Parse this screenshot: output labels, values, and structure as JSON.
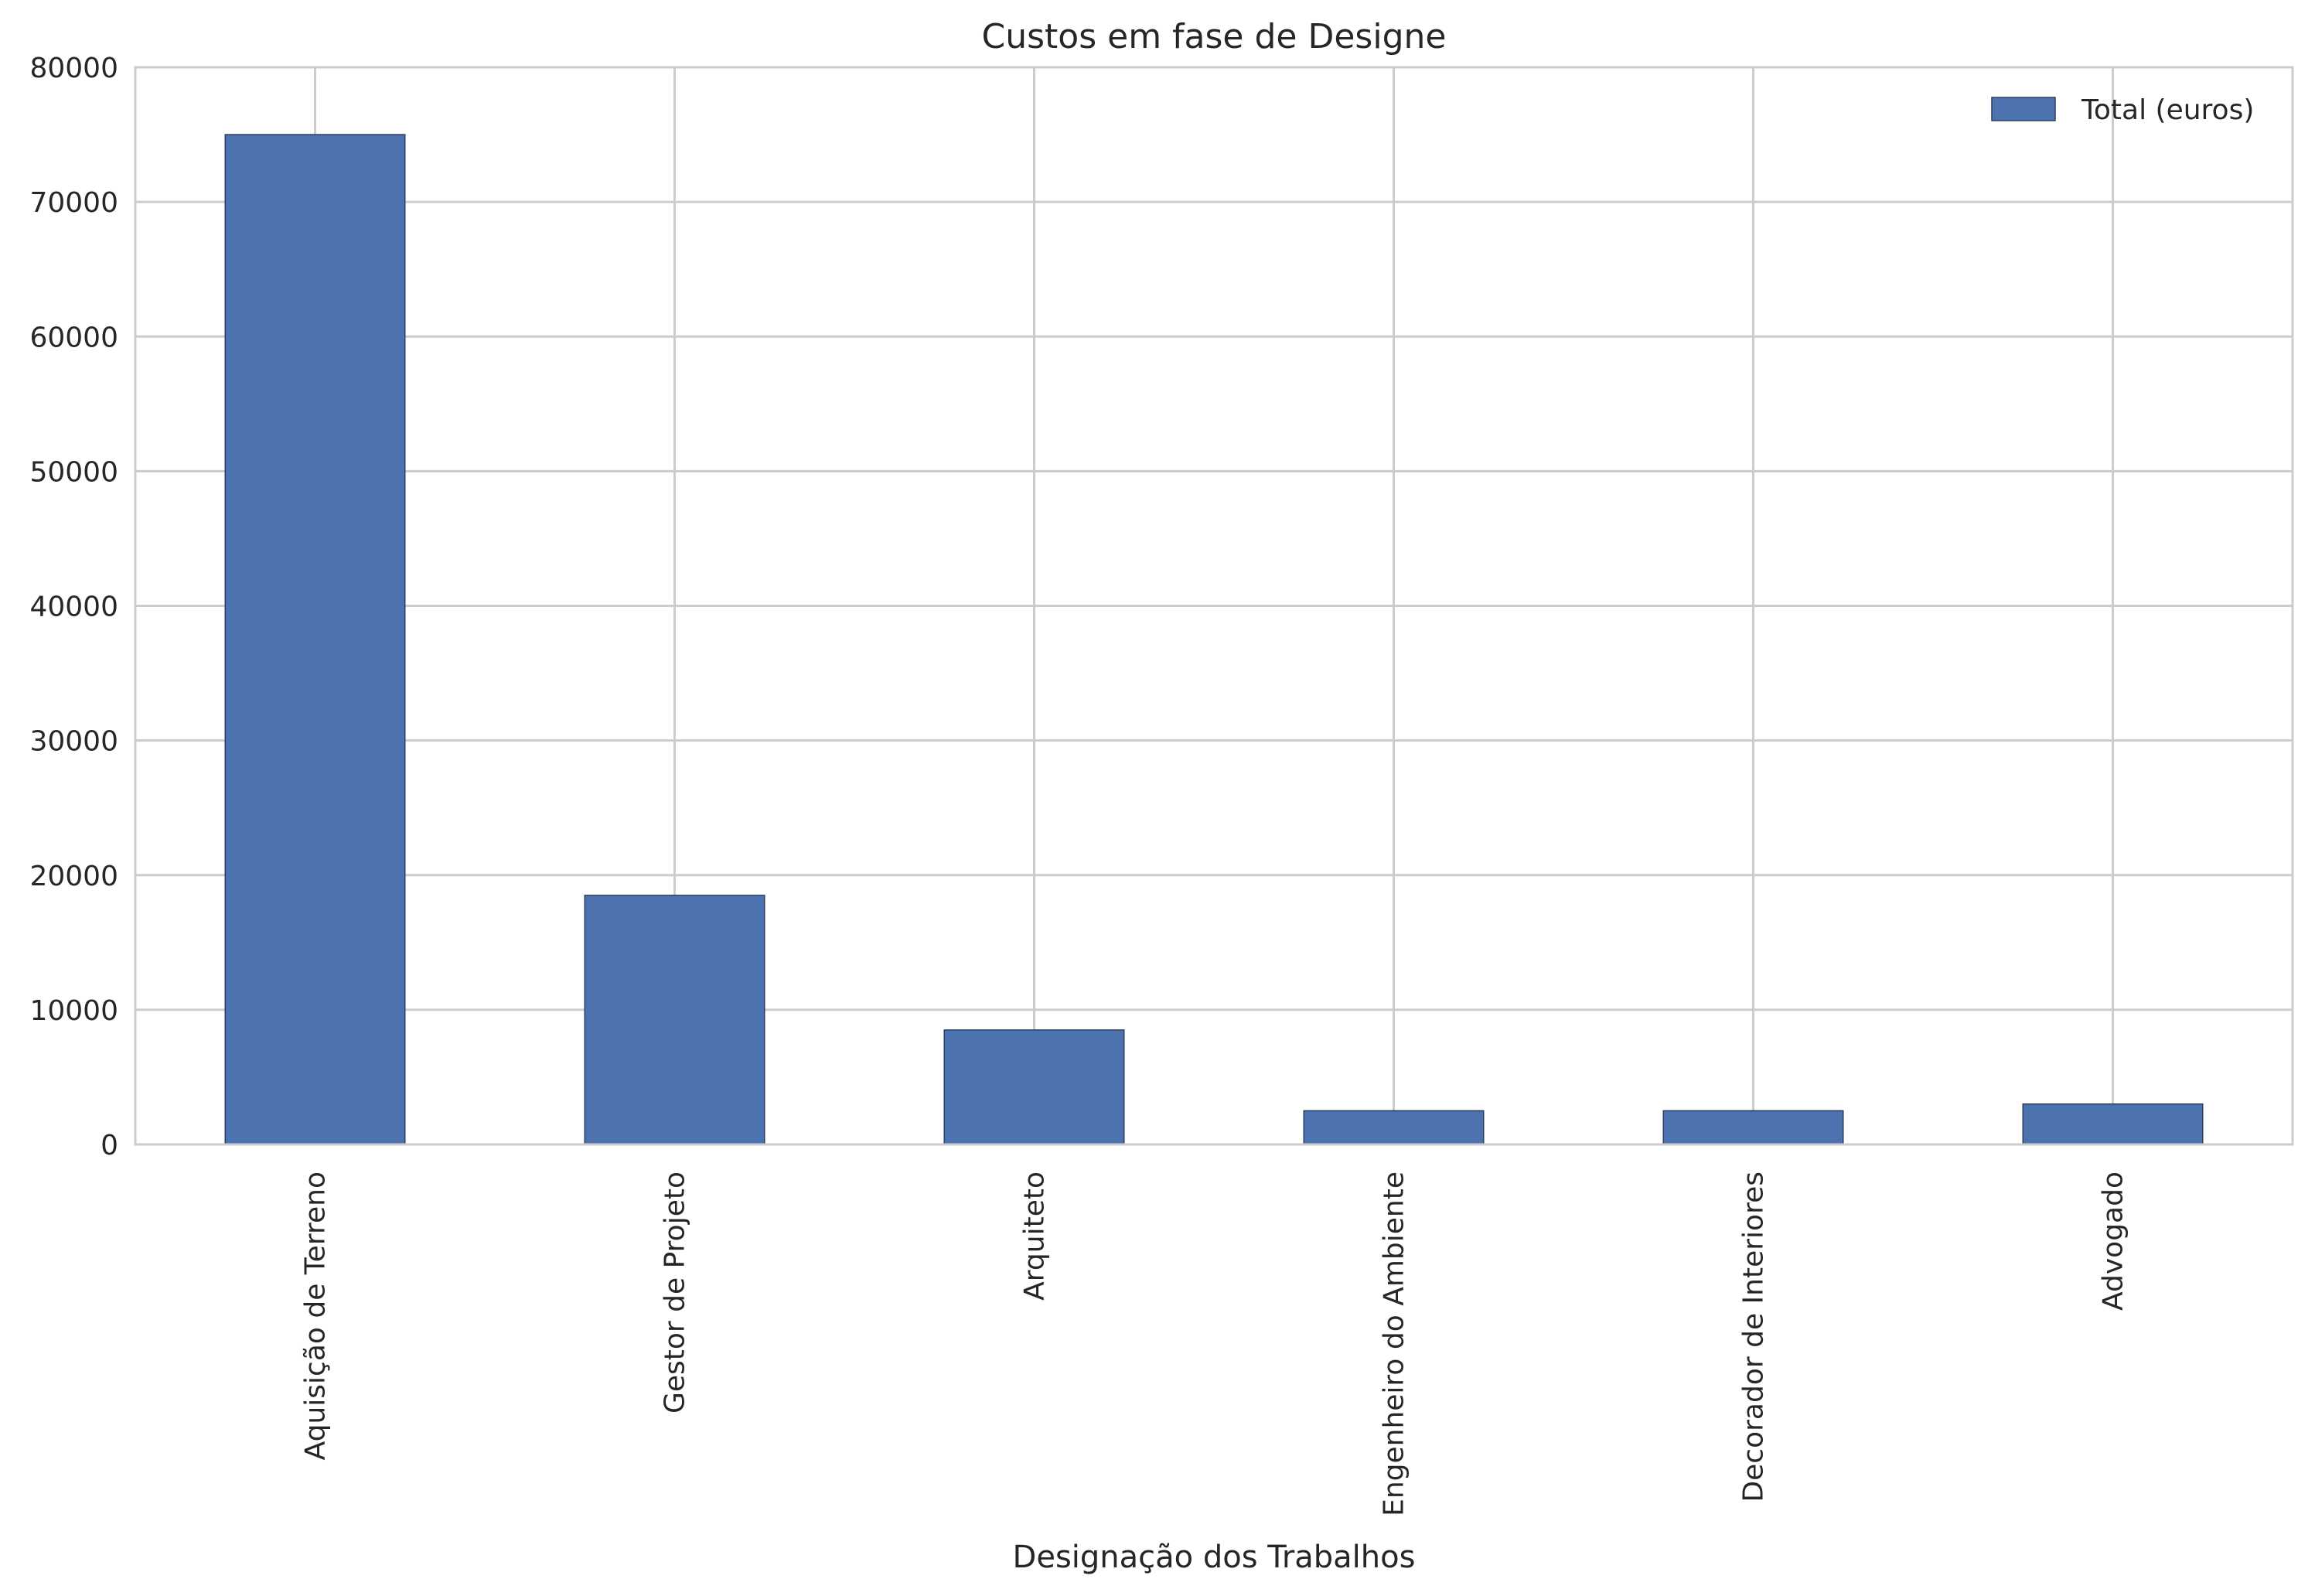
{
  "chart_data": {
    "type": "bar",
    "title": "Custos em fase de Designe",
    "xlabel": "Designação dos Trabalhos",
    "ylabel": "",
    "categories": [
      "Aquisição de Terreno",
      "Gestor de Projeto",
      "Arquiteto",
      "Engenheiro do Ambiente",
      "Decorador de Interiores",
      "Advogado"
    ],
    "series": [
      {
        "name": "Total (euros)",
        "color": "#4c72b0",
        "values": [
          75000,
          18500,
          8500,
          2500,
          2500,
          3000
        ]
      }
    ],
    "ylim": [
      0,
      80000
    ],
    "yticks": [
      0,
      10000,
      20000,
      30000,
      40000,
      50000,
      60000,
      70000,
      80000
    ],
    "grid": true,
    "legend_position": "top-right"
  }
}
